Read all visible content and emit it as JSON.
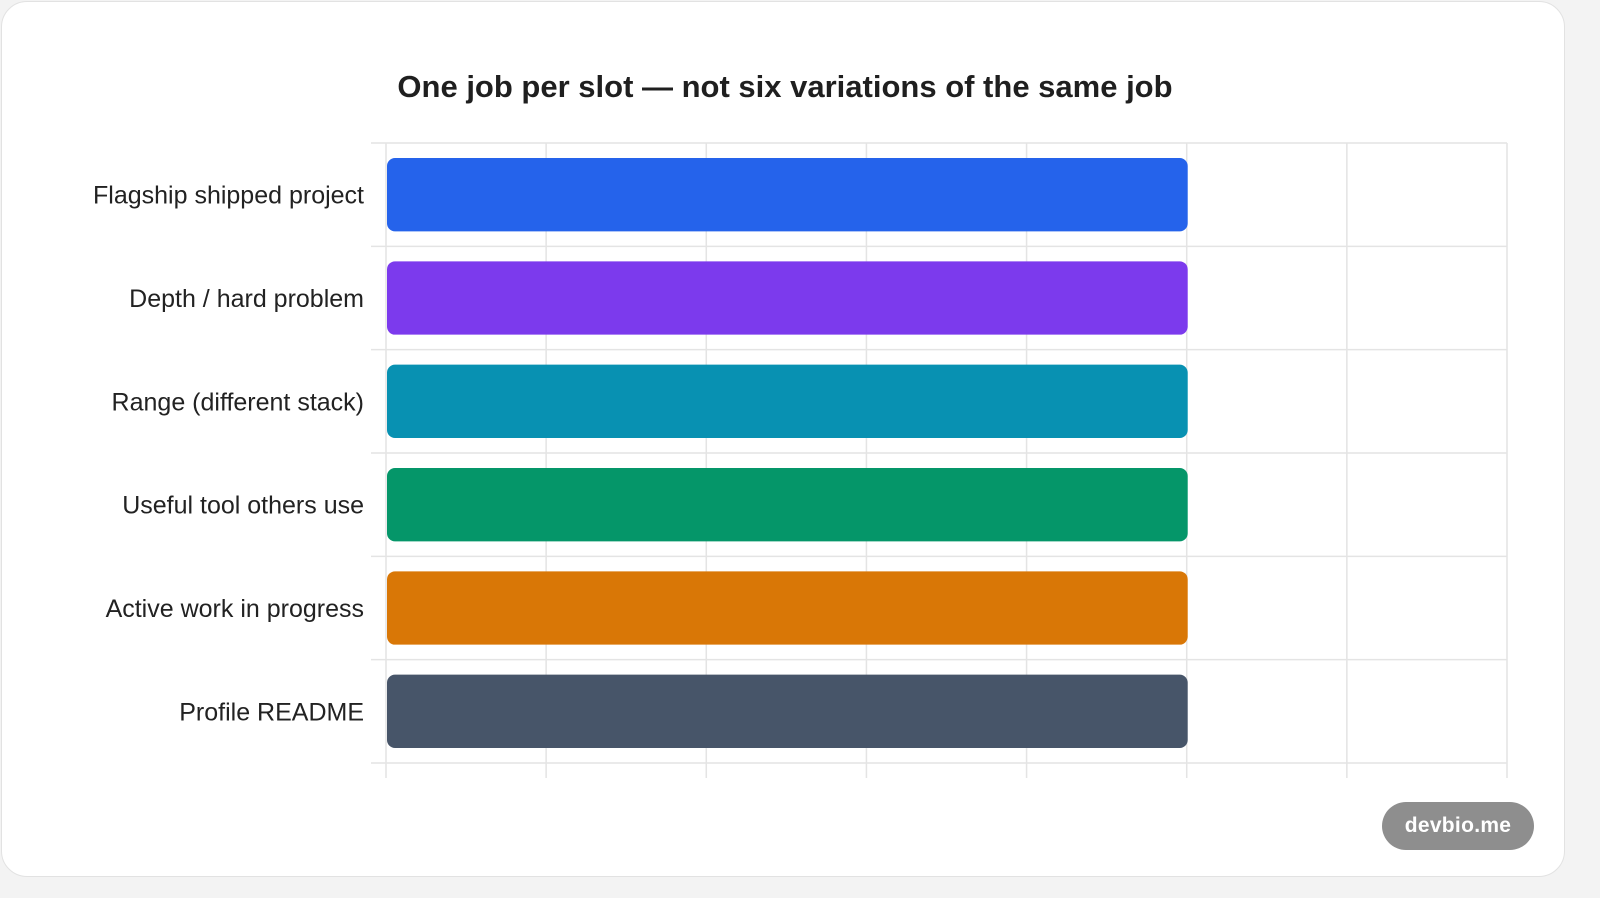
{
  "chart_data": {
    "type": "bar",
    "orientation": "horizontal",
    "title": "One job per slot — not six variations of the same job",
    "categories": [
      "Flagship shipped project",
      "Depth / hard problem",
      "Range (different stack)",
      "Useful tool others use",
      "Active work in progress",
      "Profile README"
    ],
    "values": [
      1,
      1,
      1,
      1,
      1,
      1
    ],
    "colors": [
      "#2563eb",
      "#7c3aed",
      "#0891b2",
      "#059669",
      "#d97706",
      "#475569"
    ],
    "xlim": [
      0,
      1.4
    ],
    "grid": true,
    "legend": "none",
    "show_tick_labels": false
  },
  "badge": {
    "label": "devbio.me"
  }
}
